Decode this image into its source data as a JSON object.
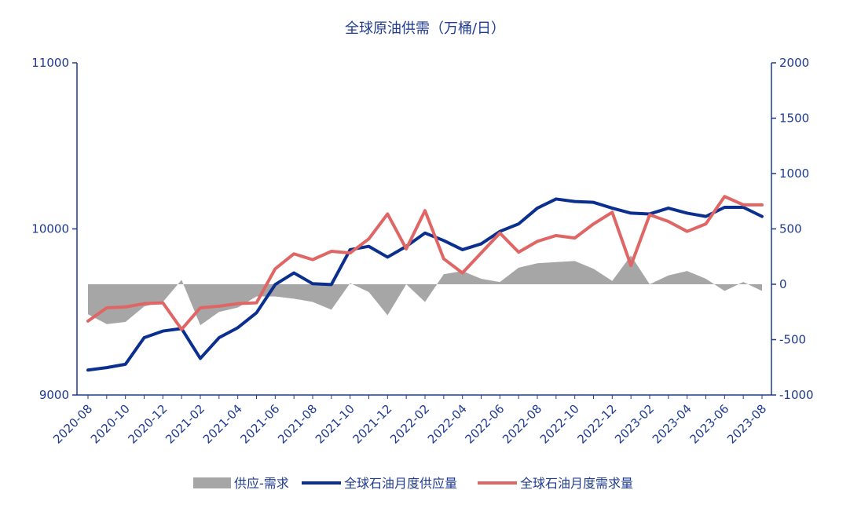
{
  "chart_data": {
    "type": "line",
    "title": "全球原油供需（万桶/日）",
    "x": [
      "2020-08",
      "2020-09",
      "2020-10",
      "2020-11",
      "2020-12",
      "2021-01",
      "2021-02",
      "2021-03",
      "2021-04",
      "2021-05",
      "2021-06",
      "2021-07",
      "2021-08",
      "2021-09",
      "2021-10",
      "2021-11",
      "2021-12",
      "2022-01",
      "2022-02",
      "2022-03",
      "2022-04",
      "2022-05",
      "2022-06",
      "2022-07",
      "2022-08",
      "2022-09",
      "2022-10",
      "2022-11",
      "2022-12",
      "2023-01",
      "2023-02",
      "2023-03",
      "2023-04",
      "2023-05",
      "2023-06",
      "2023-07",
      "2023-08"
    ],
    "x_tick_labels": [
      "2020-08",
      "2020-10",
      "2020-12",
      "2021-02",
      "2021-04",
      "2021-06",
      "2021-08",
      "2021-10",
      "2021-12",
      "2022-02",
      "2022-04",
      "2022-06",
      "2022-08",
      "2022-10",
      "2022-12",
      "2023-02",
      "2023-04",
      "2023-06",
      "2023-08"
    ],
    "y_left": {
      "min": 9000,
      "max": 11000,
      "ticks": [
        9000,
        10000,
        11000
      ]
    },
    "y_right": {
      "min": -1000,
      "max": 2000,
      "ticks": [
        -1000,
        -500,
        0,
        500,
        1000,
        1500,
        2000
      ]
    },
    "series": [
      {
        "name": "供应-需求",
        "type": "area",
        "axis": "right",
        "color": "#a6a6a6",
        "values": [
          -270,
          -360,
          -340,
          -200,
          -160,
          40,
          -370,
          -250,
          -210,
          -110,
          -110,
          -130,
          -160,
          -230,
          10,
          -70,
          -280,
          0,
          -160,
          90,
          120,
          50,
          20,
          150,
          190,
          200,
          210,
          140,
          30,
          260,
          0,
          80,
          120,
          50,
          -60,
          20,
          -60
        ]
      },
      {
        "name": "全球石油月度供应量",
        "type": "line",
        "axis": "left",
        "color": "#0a2f8f",
        "values": [
          9150,
          9165,
          9185,
          9345,
          9385,
          9400,
          9220,
          9345,
          9405,
          9495,
          9665,
          9735,
          9670,
          9665,
          9875,
          9895,
          9830,
          9895,
          9975,
          9930,
          9875,
          9910,
          9985,
          10030,
          10125,
          10180,
          10165,
          10160,
          10125,
          10095,
          10090,
          10125,
          10095,
          10075,
          10130,
          10130,
          10075
        ]
      },
      {
        "name": "全球石油月度需求量",
        "type": "line",
        "axis": "left",
        "color": "#e06666",
        "values": [
          9445,
          9525,
          9530,
          9550,
          9555,
          9395,
          9525,
          9535,
          9550,
          9555,
          9760,
          9850,
          9815,
          9865,
          9855,
          9940,
          10090,
          9880,
          10110,
          9820,
          9735,
          9855,
          9975,
          9860,
          9925,
          9960,
          9945,
          10030,
          10100,
          9780,
          10085,
          10045,
          9985,
          10030,
          10195,
          10145,
          10145
        ]
      }
    ],
    "legend_position": "bottom",
    "grid": false
  }
}
